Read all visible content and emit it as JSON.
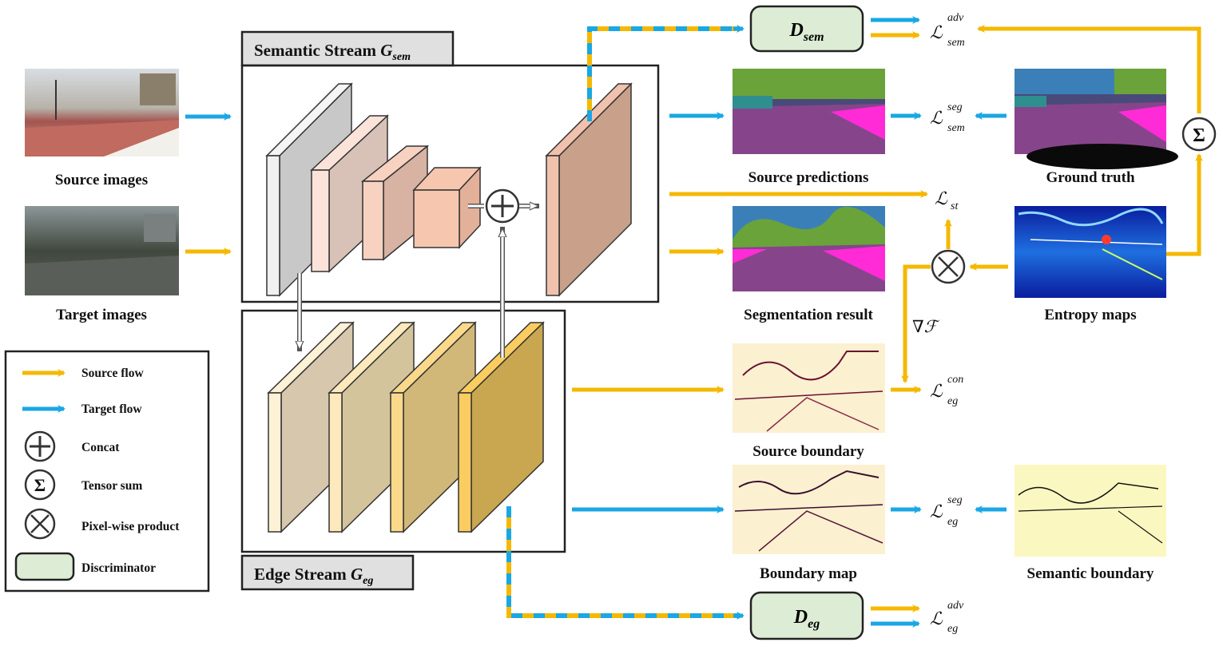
{
  "streams": {
    "semantic": {
      "label": "Semantic Stream ",
      "symbol": "G",
      "sub": "sem"
    },
    "edge": {
      "label": "Edge Stream ",
      "symbol": "G",
      "sub": "eg"
    }
  },
  "inputs": {
    "source_label": "Source images",
    "target_label": "Target images"
  },
  "outputs": {
    "source_predictions": "Source predictions",
    "ground_truth": "Ground truth",
    "segmentation_result": "Segmentation result",
    "entropy_maps": "Entropy maps",
    "source_boundary": "Source boundary",
    "boundary_map": "Boundary map",
    "semantic_boundary": "Semantic boundary"
  },
  "discriminators": {
    "sem": {
      "symbol": "D",
      "sub": "sem"
    },
    "eg": {
      "symbol": "D",
      "sub": "eg"
    }
  },
  "losses": {
    "adv_sem": {
      "sup": "adv",
      "sub": "sem"
    },
    "seg_sem": {
      "sup": "seg",
      "sub": "sem"
    },
    "st": {
      "sub": "st"
    },
    "con_eg": {
      "sup": "con",
      "sub": "eg"
    },
    "seg_eg": {
      "sup": "seg",
      "sub": "eg"
    },
    "adv_eg": {
      "sup": "adv",
      "sub": "eg"
    },
    "script_L": "ℒ"
  },
  "gradient_label": "∇ℱ",
  "legend": {
    "source_flow": "Source flow",
    "target_flow": "Target flow",
    "concat": "Concat",
    "tensor_sum": "Tensor sum",
    "pixel_product": "Pixel-wise product",
    "discriminator": "Discriminator"
  },
  "colors": {
    "source_flow": "#f5b800",
    "target_flow": "#1aa7e4",
    "discriminator_fill": "#ddecd4",
    "stream_label_fill": "#e0e0e0",
    "seg_road": "#86458a",
    "seg_sidewalk": "#ff2bd6",
    "seg_sky": "#3b7fb8",
    "seg_vegetation": "#6aa33a",
    "boundary_bg": "#fbf7c8",
    "entropy_bg": "#0a1d9e"
  }
}
